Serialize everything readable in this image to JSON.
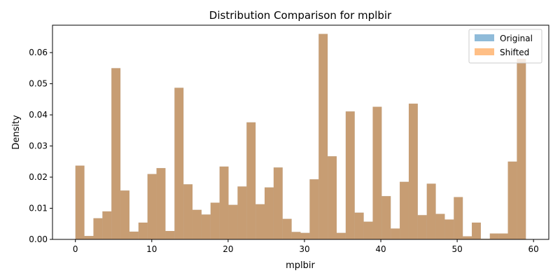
{
  "chart_data": {
    "type": "histogram",
    "title": "Distribution Comparison for mplbir",
    "xlabel": "mplbir",
    "ylabel": "Density",
    "xlim": [
      -3,
      62
    ],
    "ylim": [
      0,
      0.0688
    ],
    "xticks": [
      0,
      10,
      20,
      30,
      40,
      50,
      60
    ],
    "yticks": [
      0.0,
      0.01,
      0.02,
      0.03,
      0.04,
      0.05,
      0.06
    ],
    "ytick_labels": [
      "0.00",
      "0.01",
      "0.02",
      "0.03",
      "0.04",
      "0.05",
      "0.06"
    ],
    "legend_position": "top-right",
    "grid": false,
    "bin_start": 0,
    "bin_width": 1.18,
    "series": [
      {
        "name": "Original",
        "color": "#1f77b4",
        "opacity": 0.5,
        "values": [
          0.0237,
          0.0011,
          0.0068,
          0.009,
          0.055,
          0.0157,
          0.0025,
          0.0054,
          0.021,
          0.0229,
          0.0027,
          0.0487,
          0.0177,
          0.0095,
          0.008,
          0.0118,
          0.0234,
          0.0111,
          0.017,
          0.0376,
          0.0113,
          0.0167,
          0.0231,
          0.0066,
          0.0024,
          0.0021,
          0.0193,
          0.066,
          0.0267,
          0.0021,
          0.0411,
          0.0086,
          0.0057,
          0.0426,
          0.0139,
          0.0035,
          0.0185,
          0.0436,
          0.0078,
          0.0179,
          0.0082,
          0.0064,
          0.0136,
          0.001,
          0.0054,
          0.0002,
          0.0019,
          0.0019,
          0.025,
          0.058
        ]
      },
      {
        "name": "Shifted",
        "color": "#ff7f0e",
        "opacity": 0.5,
        "values": [
          0.0237,
          0.0011,
          0.0068,
          0.009,
          0.055,
          0.0157,
          0.0025,
          0.0054,
          0.021,
          0.0229,
          0.0027,
          0.0487,
          0.0177,
          0.0095,
          0.008,
          0.0118,
          0.0234,
          0.0111,
          0.017,
          0.0376,
          0.0113,
          0.0167,
          0.0231,
          0.0066,
          0.0024,
          0.0021,
          0.0193,
          0.066,
          0.0267,
          0.0021,
          0.0411,
          0.0086,
          0.0057,
          0.0426,
          0.0139,
          0.0035,
          0.0185,
          0.0436,
          0.0078,
          0.0179,
          0.0082,
          0.0064,
          0.0136,
          0.001,
          0.0054,
          0.0002,
          0.0019,
          0.0019,
          0.025,
          0.058
        ]
      }
    ]
  }
}
